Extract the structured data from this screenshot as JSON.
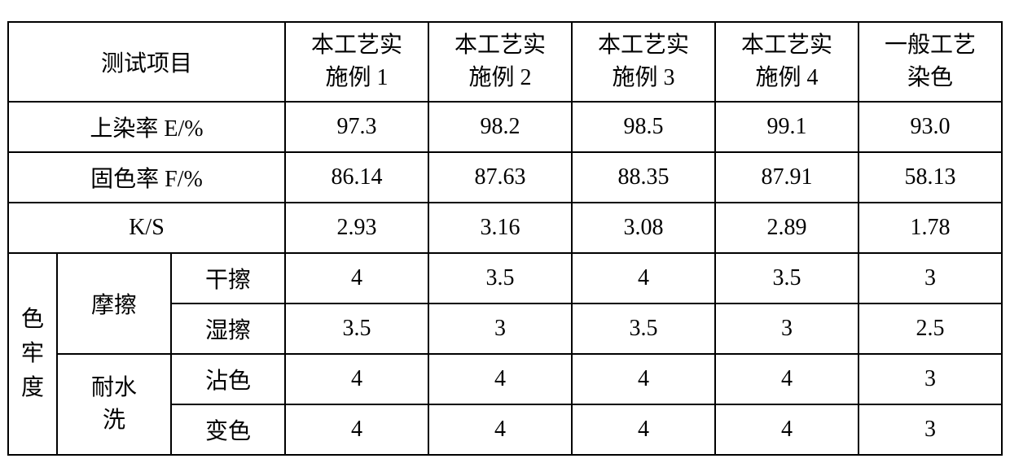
{
  "table": {
    "border_color": "#000000",
    "background_color": "#ffffff",
    "font_color": "#000000",
    "font_family": "SimSun",
    "font_size_pt": 21,
    "header": {
      "test_item": "测试项目",
      "cols": [
        {
          "line1": "本工艺实",
          "line2": "施例 1"
        },
        {
          "line1": "本工艺实",
          "line2": "施例 2"
        },
        {
          "line1": "本工艺实",
          "line2": "施例 3"
        },
        {
          "line1": "本工艺实",
          "line2": "施例 4"
        },
        {
          "line1": "一般工艺",
          "line2": "染色"
        }
      ]
    },
    "rows_simple": [
      {
        "label": "上染率 E/%",
        "v": [
          "97.3",
          "98.2",
          "98.5",
          "99.1",
          "93.0"
        ]
      },
      {
        "label": "固色率 F/%",
        "v": [
          "86.14",
          "87.63",
          "88.35",
          "87.91",
          "58.13"
        ]
      },
      {
        "label": "K/S",
        "v": [
          "2.93",
          "3.16",
          "3.08",
          "2.89",
          "1.78"
        ]
      }
    ],
    "fastness": {
      "group_label_chars": [
        "色",
        "牢",
        "度"
      ],
      "groups": [
        {
          "label": "摩擦",
          "subs": [
            {
              "label": "干擦",
              "v": [
                "4",
                "3.5",
                "4",
                "3.5",
                "3"
              ]
            },
            {
              "label": "湿擦",
              "v": [
                "3.5",
                "3",
                "3.5",
                "3",
                "2.5"
              ]
            }
          ]
        },
        {
          "label_line1": "耐水",
          "label_line2": "洗",
          "subs": [
            {
              "label": "沾色",
              "v": [
                "4",
                "4",
                "4",
                "4",
                "3"
              ]
            },
            {
              "label": "变色",
              "v": [
                "4",
                "4",
                "4",
                "4",
                "3"
              ]
            }
          ]
        }
      ]
    }
  }
}
